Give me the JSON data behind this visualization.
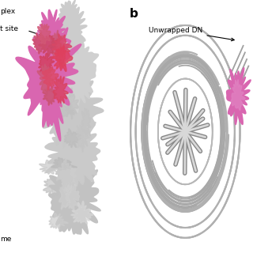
{
  "bg_color": "#ffffff",
  "ncp_color_base": "#c8c8c8",
  "set2_color": "#d966b0",
  "annotation_color": "#000000",
  "label_plex": "plex",
  "label_site": "t site",
  "label_ome": "me",
  "label_b": "b",
  "label_unwrapped": "Unwrapped DN",
  "figsize": [
    3.2,
    3.2
  ],
  "dpi": 100
}
